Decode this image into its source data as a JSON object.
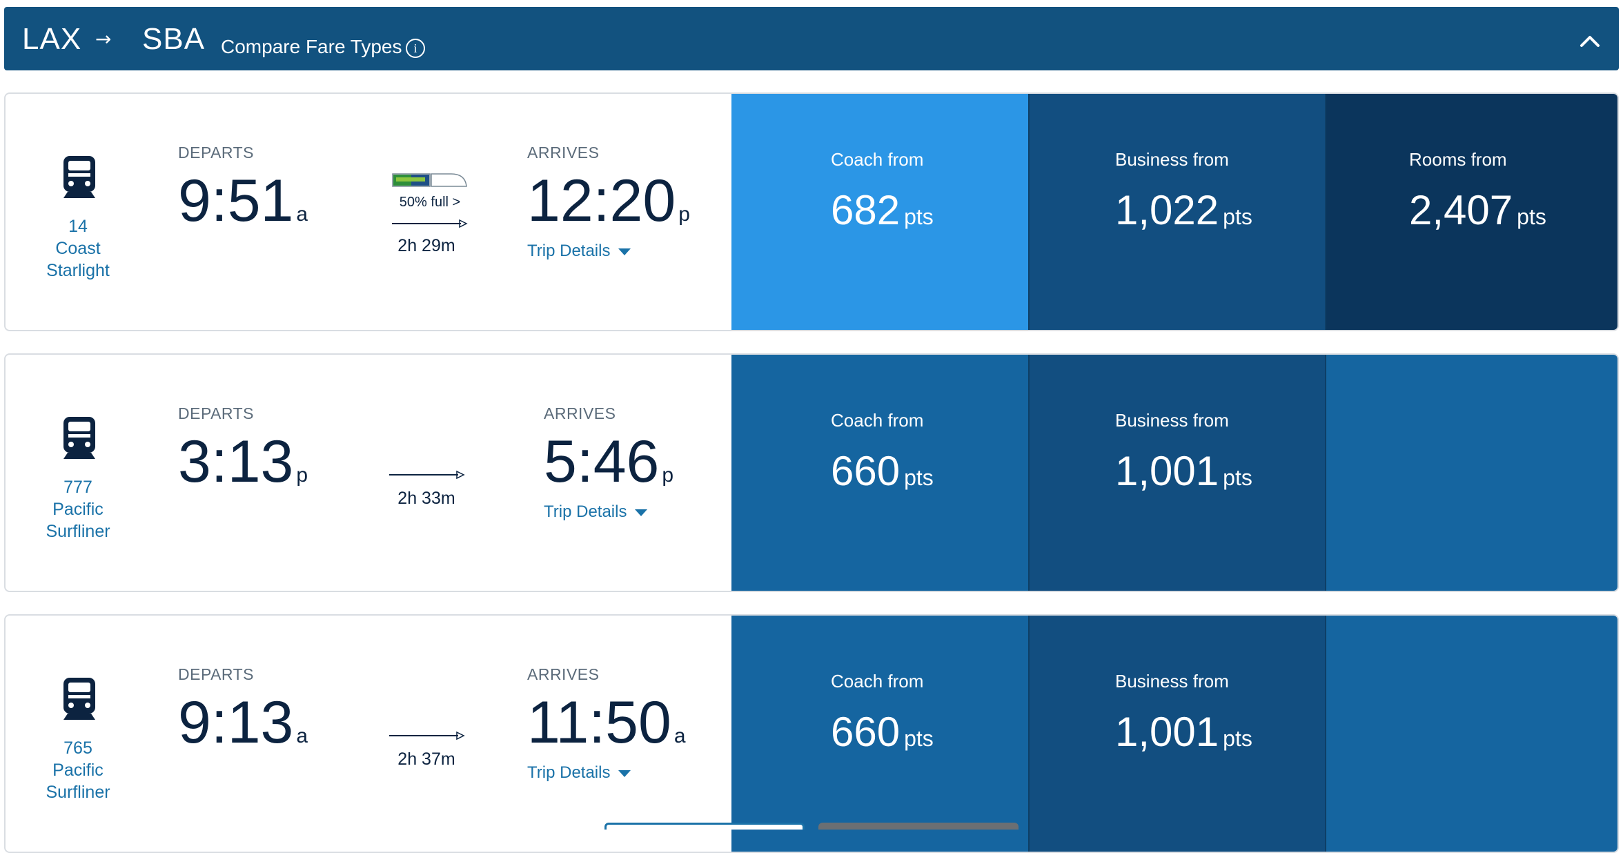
{
  "header": {
    "origin": "LAX",
    "arrow": "→",
    "destination": "SBA",
    "compare_label": "Compare Fare Types",
    "info_glyph": "i"
  },
  "colors": {
    "header_bg": "#12527f",
    "coach_selected": "#2b96e6",
    "fare_standard": "#1565a0",
    "business_dark": "#124e80",
    "rooms_darkest": "#0b355c",
    "link": "#1a72a8"
  },
  "trains": [
    {
      "number": "14",
      "name_line1": "Coast",
      "name_line2": "Starlight",
      "departs_label": "DEPARTS",
      "depart_time": "9:51",
      "depart_ampm": "a",
      "arrives_label": "ARRIVES",
      "arrive_time": "12:20",
      "arrive_ampm": "p",
      "duration": "2h 29m",
      "fullness": "50% full >",
      "capacity_fraction": 0.5,
      "trip_details": "Trip Details",
      "coach_label": "Coach from",
      "coach_value": "682",
      "business_label": "Business from",
      "business_value": "1,022",
      "rooms_label": "Rooms from",
      "rooms_value": "2,407",
      "pts": "pts"
    },
    {
      "number": "777",
      "name_line1": "Pacific",
      "name_line2": "Surfliner",
      "departs_label": "DEPARTS",
      "depart_time": "3:13",
      "depart_ampm": "p",
      "arrives_label": "ARRIVES",
      "arrive_time": "5:46",
      "arrive_ampm": "p",
      "duration": "2h 33m",
      "trip_details": "Trip Details",
      "coach_label": "Coach from",
      "coach_value": "660",
      "business_label": "Business from",
      "business_value": "1,001",
      "pts": "pts"
    },
    {
      "number": "765",
      "name_line1": "Pacific",
      "name_line2": "Surfliner",
      "departs_label": "DEPARTS",
      "depart_time": "9:13",
      "depart_ampm": "a",
      "arrives_label": "ARRIVES",
      "arrive_time": "11:50",
      "arrive_ampm": "a",
      "duration": "2h 37m",
      "trip_details": "Trip Details",
      "coach_label": "Coach from",
      "coach_value": "660",
      "business_label": "Business from",
      "business_value": "1,001",
      "pts": "pts"
    }
  ]
}
